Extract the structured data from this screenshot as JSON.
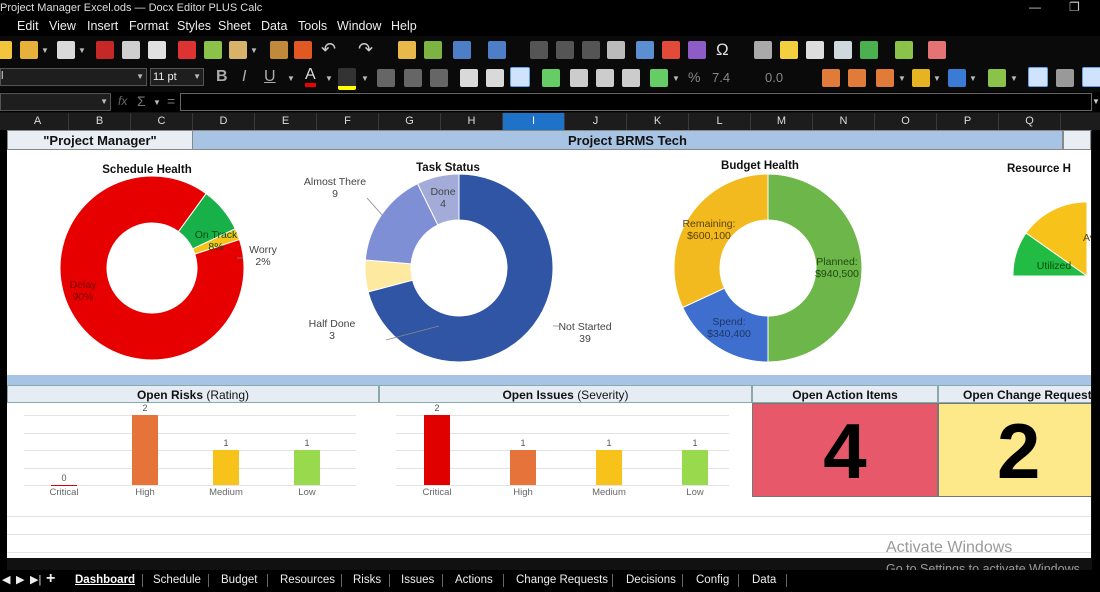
{
  "window": {
    "title": "Project Manager Excel.ods — Docx Editor PLUS Calc"
  },
  "menu": [
    "Edit",
    "View",
    "Insert",
    "Format",
    "Styles",
    "Sheet",
    "Data",
    "Tools",
    "Window",
    "Help"
  ],
  "toolbar": {
    "font_size": "11 pt",
    "number_format_label": "7.4",
    "decimal_label": "0.0"
  },
  "formula_bar": {
    "fx": "fx",
    "sigma": "Σ",
    "equals": "="
  },
  "columns": [
    "A",
    "B",
    "C",
    "D",
    "E",
    "F",
    "G",
    "H",
    "I",
    "J",
    "K",
    "L",
    "M",
    "N",
    "O",
    "P",
    "Q"
  ],
  "sheet": {
    "header_left": "\"Project Manager\"",
    "header_right": "Project BRMS Tech"
  },
  "charts": {
    "schedule": {
      "title": "Schedule Health",
      "on_track_label": "On Track",
      "on_track_pct": "8%",
      "worry_label": "Worry",
      "worry_pct": "2%",
      "delay_label": "Delay",
      "delay_pct": "90%"
    },
    "task": {
      "title": "Task Status",
      "almost_label": "Almost There",
      "almost_val": "9",
      "done_label": "Done",
      "done_val": "4",
      "half_label": "Half Done",
      "half_val": "3",
      "not_label": "Not Started",
      "not_val": "39"
    },
    "budget": {
      "title": "Budget Health",
      "remaining_label": "Remaining:",
      "remaining_val": "$600,100",
      "planned_label": "Planned:",
      "planned_val": "$940,500",
      "spend_label": "Spend:",
      "spend_val": "$340,400"
    },
    "resource": {
      "title": "Resource H",
      "utilized_label": "Utilized",
      "avail_label": "Av"
    }
  },
  "chart_data": [
    {
      "type": "pie",
      "title": "Schedule Health",
      "categories": [
        "Delay",
        "On Track",
        "Worry"
      ],
      "values": [
        90,
        8,
        2
      ]
    },
    {
      "type": "pie",
      "title": "Task Status",
      "categories": [
        "Not Started",
        "Half Done",
        "Almost There",
        "Done"
      ],
      "values": [
        39,
        3,
        9,
        4
      ]
    },
    {
      "type": "pie",
      "title": "Budget Health",
      "categories": [
        "Planned",
        "Spend",
        "Remaining"
      ],
      "values": [
        940500,
        340400,
        600100
      ]
    },
    {
      "type": "bar",
      "title": "Open Risks (Rating)",
      "categories": [
        "Critical",
        "High",
        "Medium",
        "Low"
      ],
      "values": [
        0,
        2,
        1,
        1
      ],
      "ylim": [
        0,
        2
      ]
    },
    {
      "type": "bar",
      "title": "Open Issues (Severity)",
      "categories": [
        "Critical",
        "High",
        "Medium",
        "Low"
      ],
      "values": [
        2,
        1,
        1,
        1
      ],
      "ylim": [
        0,
        2
      ]
    }
  ],
  "sections": {
    "risks_title": "Open Risks",
    "risks_sub": "(Rating)",
    "issues_title": "Open Issues",
    "issues_sub": "(Severity)",
    "actions_title": "Open Action Items",
    "actions_count": "4",
    "changes_title": "Open Change Request",
    "changes_count": "2"
  },
  "bar_colors": [
    "#e00000",
    "#e6743a",
    "#f7c31a",
    "#98d94e"
  ],
  "watermark": {
    "line1": "Activate Windows",
    "line2": "Go to Settings to activate Windows."
  },
  "tabs": [
    "Dashboard",
    "Schedule",
    "Budget",
    "Resources",
    "Risks",
    "Issues",
    "Actions",
    "Change Requests",
    "Decisions",
    "Config",
    "Data"
  ]
}
